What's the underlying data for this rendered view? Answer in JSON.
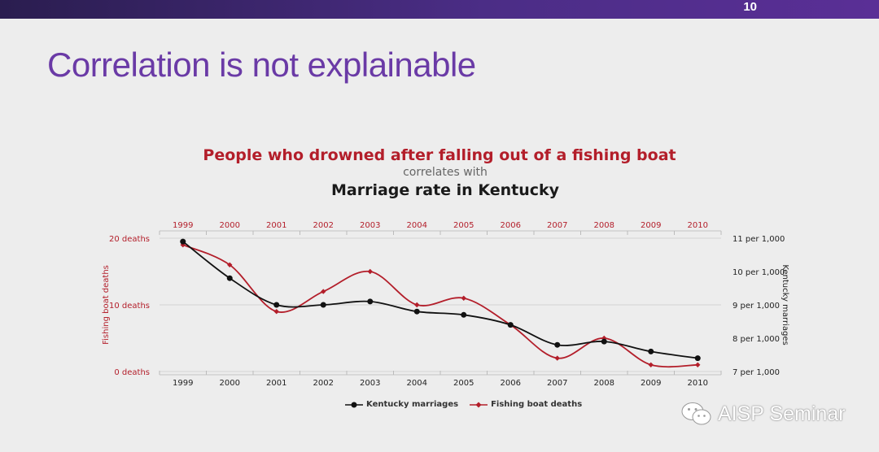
{
  "slide": {
    "number": "10",
    "title": "Correlation is not explainable"
  },
  "watermark": {
    "text": "AISP Seminar",
    "icon": "wechat-icon"
  },
  "colors": {
    "accent": "#6a3aa6",
    "topbar": "#4b2d86",
    "drowning": "#b31e2a",
    "marriage": "#111111"
  },
  "chart_data": {
    "type": "line",
    "title": "People who drowned after falling out of a fishing boat",
    "subtitle": "correlates with",
    "title2": "Marriage rate in Kentucky",
    "categories": [
      "1999",
      "2000",
      "2001",
      "2002",
      "2003",
      "2004",
      "2005",
      "2006",
      "2007",
      "2008",
      "2009",
      "2010"
    ],
    "left_axis": {
      "label": "Fishing boat deaths",
      "ticks": [
        "20 deaths",
        "10 deaths",
        "0 deaths"
      ],
      "tick_values": [
        20,
        10,
        0
      ],
      "range": [
        0,
        20
      ]
    },
    "right_axis": {
      "label": "Kentucky marriages",
      "ticks": [
        "11 per 1,000",
        "10 per 1,000",
        "9 per 1,000",
        "8 per 1,000",
        "7 per 1,000"
      ],
      "tick_values": [
        11,
        10,
        9,
        8,
        7
      ],
      "range": [
        7,
        11
      ]
    },
    "series": [
      {
        "name": "Kentucky marriages",
        "axis": "right",
        "marker": "circle",
        "color": "#111111",
        "values": [
          10.9,
          9.8,
          9.0,
          9.0,
          9.1,
          8.8,
          8.7,
          8.4,
          7.8,
          7.9,
          7.6,
          7.4
        ]
      },
      {
        "name": "Fishing boat deaths",
        "axis": "left",
        "marker": "diamond",
        "color": "#b31e2a",
        "values": [
          19,
          16,
          9,
          12,
          15,
          10,
          11,
          7,
          2,
          5,
          1,
          1
        ]
      }
    ],
    "grid": "horizontal",
    "legend_position": "bottom-center"
  }
}
